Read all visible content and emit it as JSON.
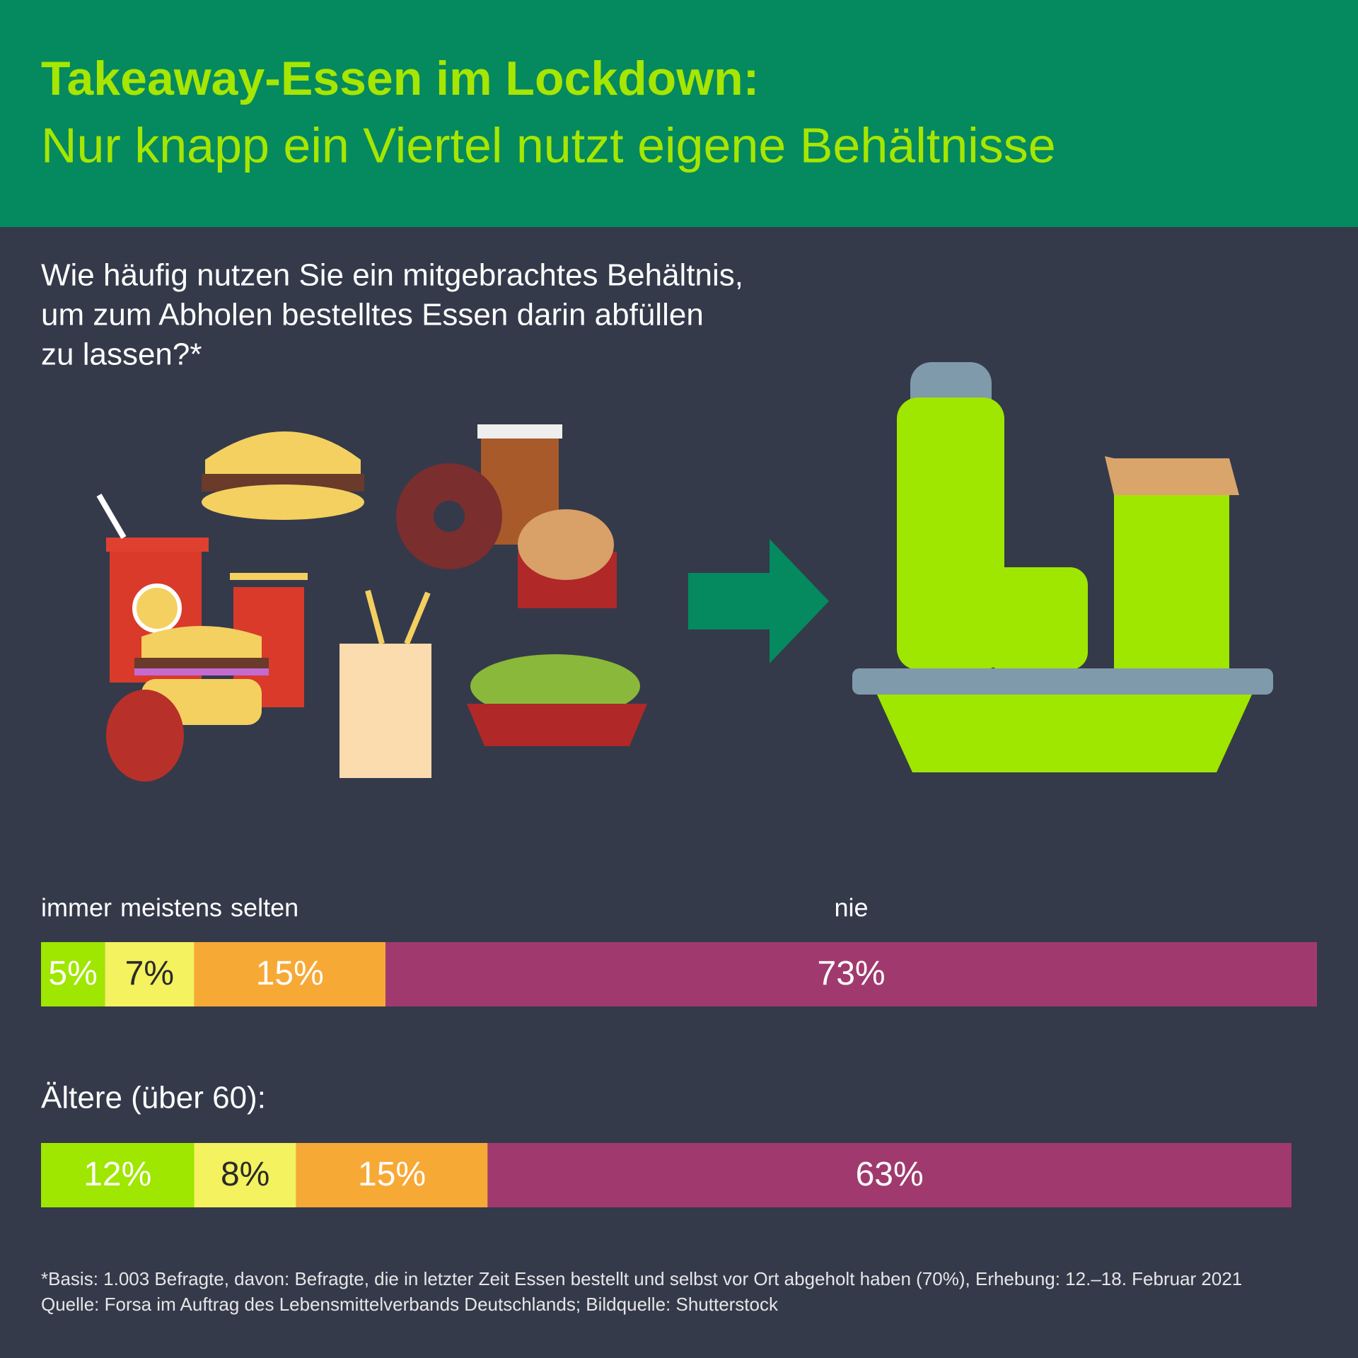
{
  "title": "Takeaway-Essen im Lockdown:",
  "subtitle": "Nur knapp ein Viertel nutzt eigene Behältnisse",
  "question_lines": [
    "Wie häufig nutzen Sie ein mitgebrachtes Behältnis,",
    "um zum Abholen bestelltes Essen darin abfüllen",
    "zu lassen?*"
  ],
  "chart_data": {
    "type": "stacked_bar_horizontal",
    "categories": [
      null,
      "Ältere (über 60):"
    ],
    "xlim": [
      0,
      100
    ],
    "series": [
      {
        "name": "immer",
        "color": "#9fe600",
        "values": [
          5,
          12
        ],
        "value_labels": [
          "5%",
          "12%"
        ]
      },
      {
        "name": "meistens",
        "color": "#f4f25e",
        "values": [
          7,
          8
        ],
        "value_labels": [
          "7%",
          "8%"
        ]
      },
      {
        "name": "selten",
        "color": "#f7a936",
        "values": [
          15,
          15
        ],
        "value_labels": [
          "15%",
          "15%"
        ]
      },
      {
        "name": "nie",
        "color": "#a03a6e",
        "values": [
          73,
          63
        ],
        "value_labels": [
          "73%",
          "63%"
        ]
      }
    ]
  },
  "footnote_lines": [
    "*Basis: 1.003 Befragte, davon: Befragte, die in letzter Zeit Essen bestellt und selbst vor Ort abgeholt haben (70%), Erhebung: 12.–18. Februar 2021",
    "Quelle: Forsa im Auftrag des Lebensmittelverbands Deutschlands; Bildquelle: Shutterstock"
  ]
}
